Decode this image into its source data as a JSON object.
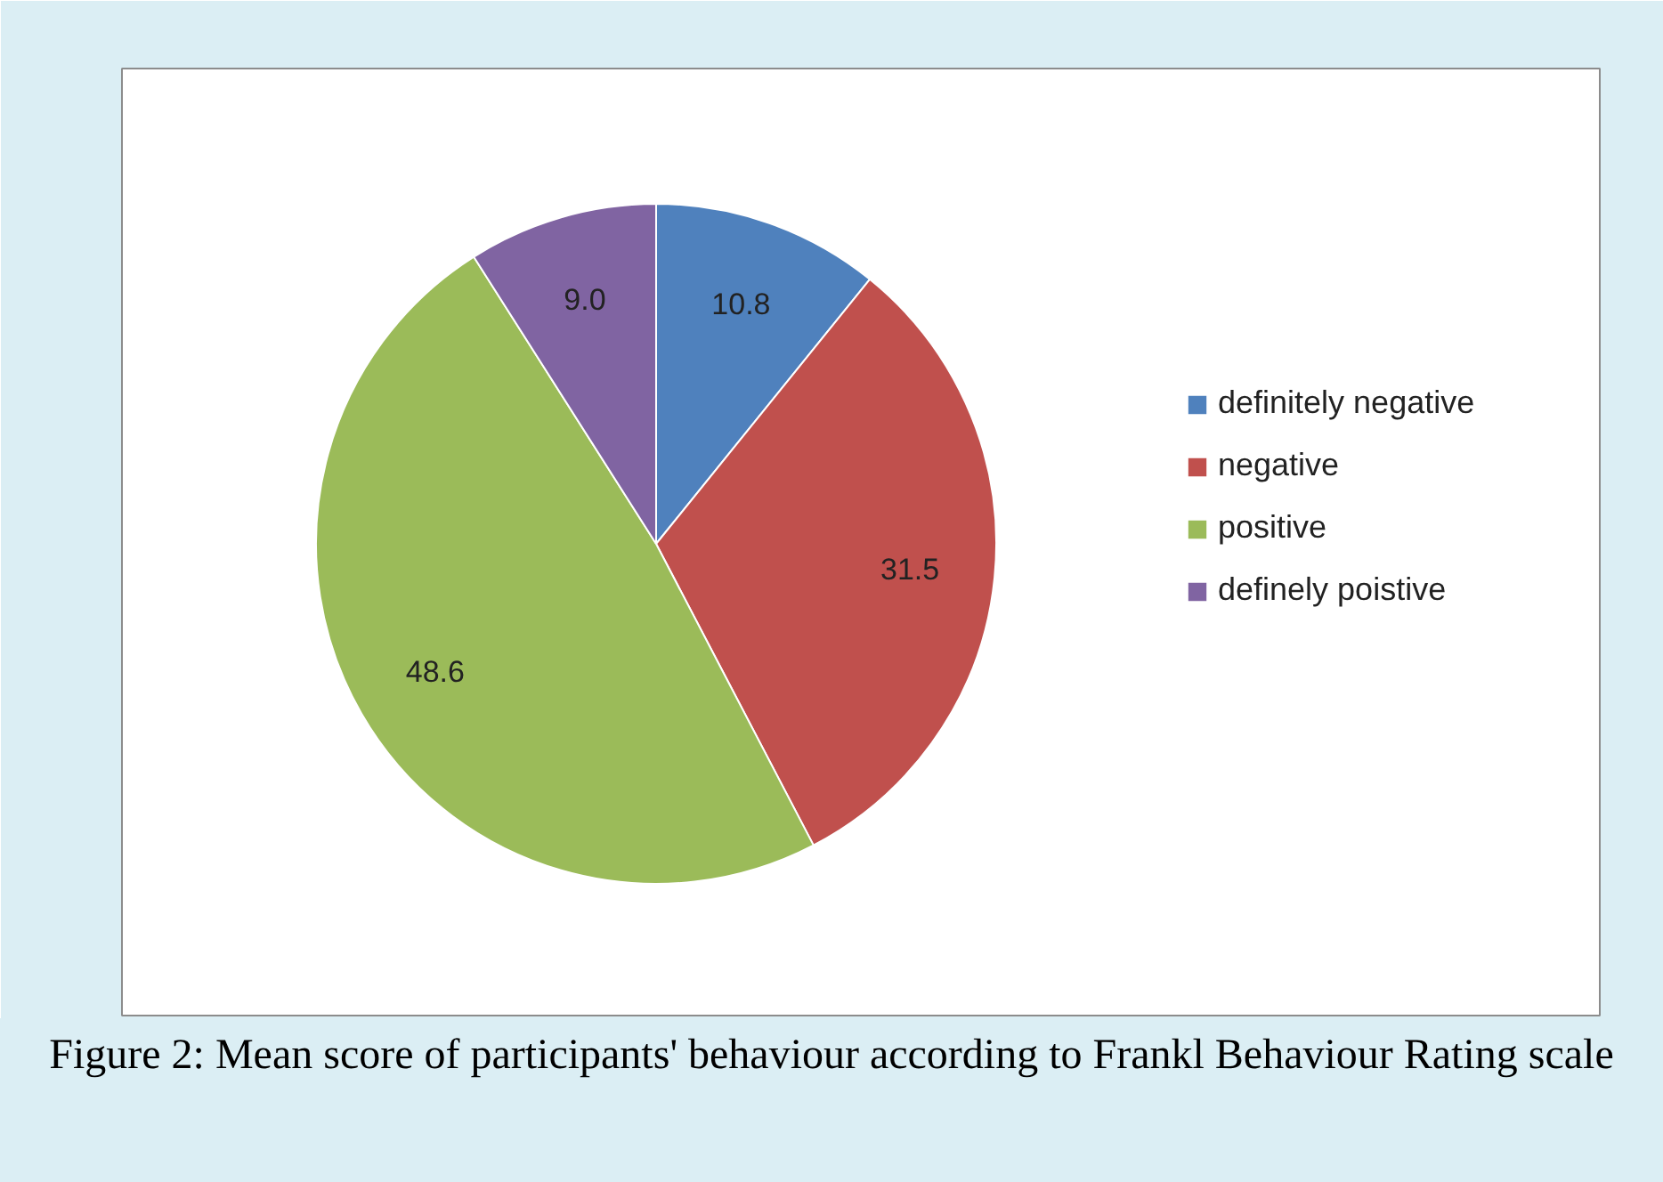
{
  "chart_data": {
    "type": "pie",
    "categories": [
      "definitely negative",
      "negative",
      "positive",
      "definely poistive"
    ],
    "values": [
      10.8,
      31.5,
      48.6,
      9.0
    ],
    "colors": [
      "#4f81bd",
      "#c0504d",
      "#9bbb59",
      "#8064a2"
    ],
    "value_labels": [
      "10.8",
      "31.5",
      "48.6",
      "9.0"
    ],
    "legend": "right",
    "annotations": [
      "Figure 2: Mean score of participants' behaviour according to Frankl Behaviour Rating scale"
    ]
  }
}
